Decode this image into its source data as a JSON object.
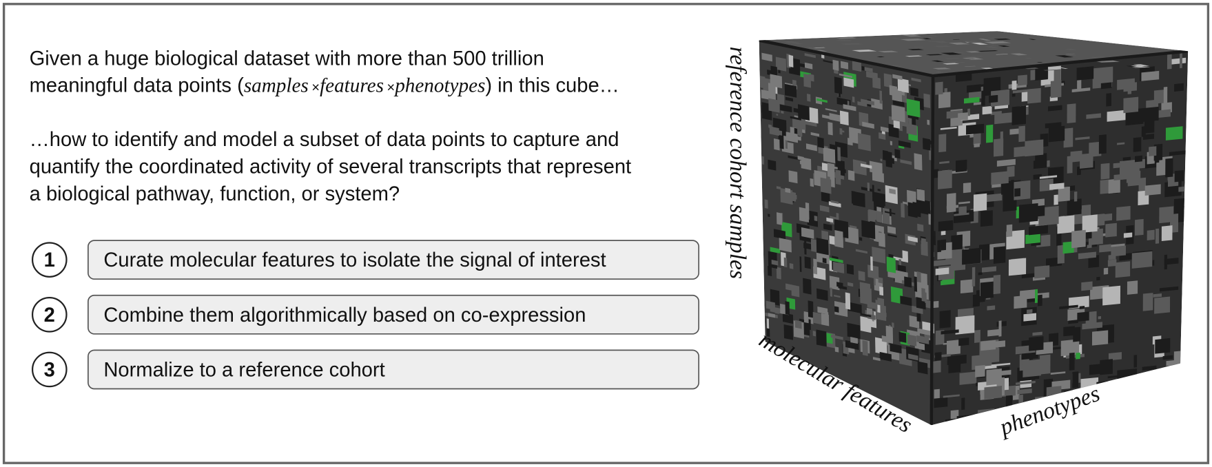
{
  "intro": [
    "Given a huge biological dataset with more than 500 trillion",
    "meaningful data points (",
    "samples",
    "×",
    "features",
    "phenotypes",
    ") in this cube…"
  ],
  "question": [
    "…how to identify and model a subset of data points to capture and",
    "quantify the coordinated activity of several transcripts that represent",
    "a biological pathway, function, or system?"
  ],
  "steps": [
    {
      "number": 1,
      "text": "Curate molecular features to isolate the signal of interest"
    },
    {
      "number": 2,
      "text": "Combine them algorithmically based on co-expression"
    },
    {
      "number": 3,
      "text": "Normalize to a reference cohort"
    }
  ],
  "cube_labels": {
    "samples": "reference cohort samples",
    "features": "molecular features",
    "phenotypes": "phenotypes"
  }
}
